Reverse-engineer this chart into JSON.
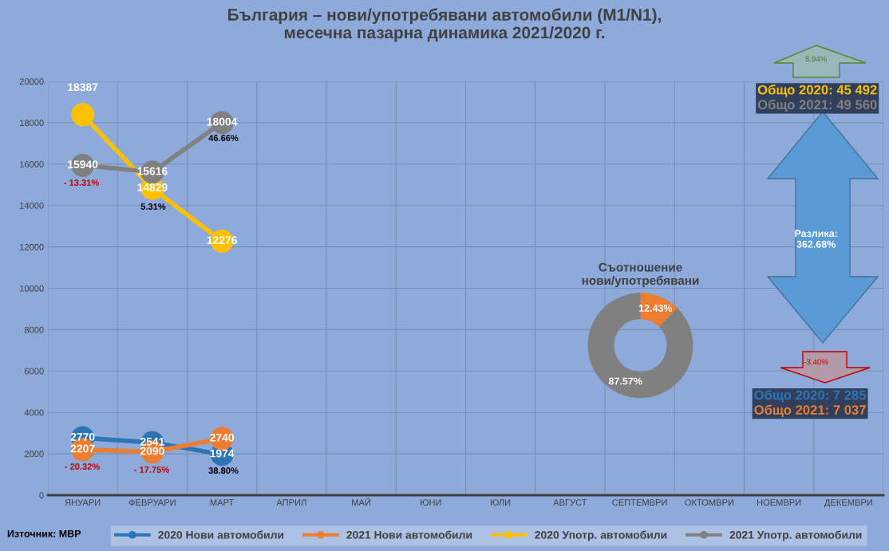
{
  "chart_data": [
    {
      "type": "line",
      "title": "България – нови/употребявани автомобили (M1/N1),\nмесечна пазарна динамика 2021/2020 г.",
      "categories": [
        "ЯНУАРИ",
        "ФЕВРУАРИ",
        "МАРТ",
        "АПРИЛ",
        "МАЙ",
        "ЮНИ",
        "ЮЛИ",
        "АВГУСТ",
        "СЕПТЕМВРИ",
        "ОКТОМВРИ",
        "НОЕМВРИ",
        "ДЕКЕМВРИ"
      ],
      "series": [
        {
          "name": "2020 Нови автомобили",
          "color": "#2e75b6",
          "values": [
            2770,
            2541,
            1974,
            null,
            null,
            null,
            null,
            null,
            null,
            null,
            null,
            null
          ]
        },
        {
          "name": "2021 Нови автомобили",
          "color": "#ed7d31",
          "values": [
            2207,
            2090,
            2740,
            null,
            null,
            null,
            null,
            null,
            null,
            null,
            null,
            null
          ]
        },
        {
          "name": "2020 Употр. автомобили",
          "color": "#ffc000",
          "values": [
            18387,
            14829,
            12276,
            null,
            null,
            null,
            null,
            null,
            null,
            null,
            null,
            null
          ]
        },
        {
          "name": "2021 Употр. автомобили",
          "color": "#808080",
          "values": [
            15940,
            15616,
            18004,
            null,
            null,
            null,
            null,
            null,
            null,
            null,
            null,
            null
          ]
        }
      ],
      "ylim": [
        0,
        20000
      ],
      "yticks": [
        0,
        2000,
        4000,
        6000,
        8000,
        10000,
        12000,
        14000,
        16000,
        18000,
        20000
      ],
      "grid": true,
      "legend": "bottom",
      "marker": "circle",
      "line_style": "solid",
      "data_labels": true,
      "annotations": [
        "- 13.31%",
        "5.31%",
        "46.66%",
        "- 20.32%",
        "- 17.75%",
        "38.80%",
        "Общо 2020: 45 492",
        "Общо 2021: 49 560",
        "8.94%",
        "Разлика:\n362.68%",
        "-3.40%",
        "Общо 2020: 7 285",
        "Общо 2021: 7 037",
        "Източник: МВР"
      ]
    },
    {
      "type": "donut",
      "title": "Съотношение\nнови/употребявани",
      "categories": [
        null,
        null
      ],
      "values": [
        12.43,
        87.57
      ],
      "colors": [
        "#ed7d31",
        "#808080"
      ],
      "value_labels": [
        "12.43%",
        "87.57%"
      ]
    }
  ]
}
